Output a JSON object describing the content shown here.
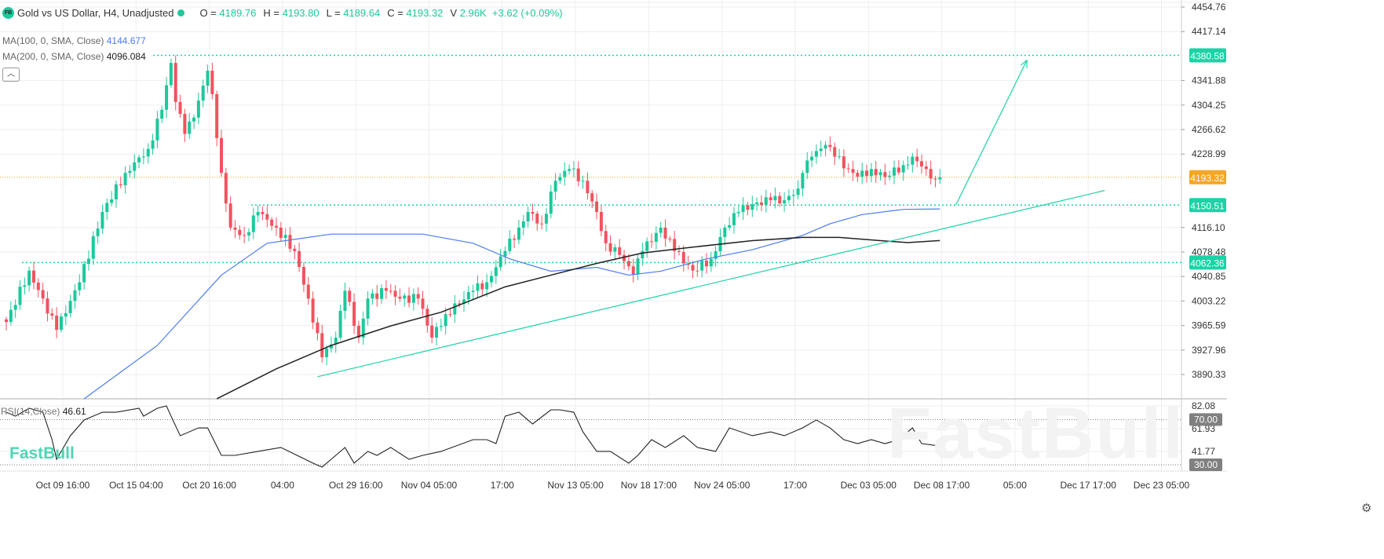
{
  "header": {
    "logo": "FB",
    "title": "Gold vs US Dollar, H4, Unadjusted",
    "o_label": "O =",
    "o": "4189.76",
    "h_label": "H =",
    "h": "4193.80",
    "l_label": "L =",
    "l": "4189.64",
    "c_label": "C =",
    "c": "4193.32",
    "v_label": "V",
    "v": "2.96K",
    "change": "+3.62 (+0.09%)"
  },
  "indicators": {
    "ma100_label": "MA(100, 0, SMA, Close)",
    "ma100_value": "4144.677",
    "ma200_label": "MA(200, 0, SMA, Close)",
    "ma200_value": "4096.084",
    "rsi_label": "RSI(14,Close)",
    "rsi_value": "46.61",
    "collapse_icon": "chevron-up-icon"
  },
  "branding": {
    "corner_logo": "FastBull",
    "watermark": "FastBull"
  },
  "colors": {
    "up": "#1bc99b",
    "down": "#f2525f",
    "ma100": "#4a7cf0",
    "ma200": "#222222",
    "lines": "#1ad3a6",
    "last_price": "#f5a623"
  },
  "chart_data": {
    "type": "candlestick",
    "price_axis": {
      "ticks": [
        "4454.76",
        "4417.14",
        "4341.88",
        "4304.25",
        "4266.62",
        "4228.99",
        "4116.10",
        "4078.48",
        "4040.85",
        "4003.22",
        "3965.59",
        "3927.96",
        "3890.33"
      ],
      "range": [
        3870,
        4460
      ]
    },
    "rsi_axis": {
      "ticks": [
        "82.08",
        "61.93",
        "41.77"
      ],
      "levels": [
        "70.00",
        "30.00"
      ]
    },
    "x_ticks": [
      "Oct 09 16:00",
      "Oct 15 04:00",
      "Oct 20 16:00",
      "04:00",
      "Oct 29 16:00",
      "Nov 04 05:00",
      "17:00",
      "Nov 13 05:00",
      "Nov 18 17:00",
      "Nov 24 05:00",
      "17:00",
      "Dec 03 05:00",
      "Dec 08 17:00",
      "05:00",
      "Dec 17 17:00",
      "Dec 23 05:00"
    ],
    "last_price": "4193.32",
    "horizontal_levels": [
      "4380.58",
      "4150.51",
      "4062.36"
    ],
    "close_keyframes": [
      [
        0,
        3971
      ],
      [
        5,
        4050
      ],
      [
        11,
        3959
      ],
      [
        16,
        4032
      ],
      [
        21,
        4140
      ],
      [
        26,
        4200
      ],
      [
        31,
        4237
      ],
      [
        34,
        4297
      ],
      [
        36,
        4369
      ],
      [
        37,
        4309
      ],
      [
        39,
        4260
      ],
      [
        41,
        4285
      ],
      [
        44,
        4357
      ],
      [
        45,
        4321
      ],
      [
        47,
        4200
      ],
      [
        49,
        4116
      ],
      [
        52,
        4104
      ],
      [
        55,
        4140
      ],
      [
        59,
        4116
      ],
      [
        63,
        4080
      ],
      [
        66,
        4007
      ],
      [
        69,
        3917
      ],
      [
        72,
        3947
      ],
      [
        74,
        4019
      ],
      [
        77,
        3947
      ],
      [
        79,
        4007
      ],
      [
        83,
        4019
      ],
      [
        86,
        4007
      ],
      [
        90,
        4007
      ],
      [
        93,
        3947
      ],
      [
        96,
        3983
      ],
      [
        102,
        4019
      ],
      [
        105,
        4032
      ],
      [
        109,
        4080
      ],
      [
        112,
        4116
      ],
      [
        114,
        4140
      ],
      [
        117,
        4122
      ],
      [
        120,
        4188
      ],
      [
        123,
        4206
      ],
      [
        126,
        4188
      ],
      [
        129,
        4140
      ],
      [
        131,
        4092
      ],
      [
        134,
        4074
      ],
      [
        137,
        4044
      ],
      [
        139,
        4080
      ],
      [
        143,
        4116
      ],
      [
        146,
        4080
      ],
      [
        150,
        4050
      ],
      [
        154,
        4068
      ],
      [
        157,
        4116
      ],
      [
        160,
        4140
      ],
      [
        163,
        4152
      ],
      [
        167,
        4158
      ],
      [
        170,
        4158
      ],
      [
        173,
        4176
      ],
      [
        174,
        4200
      ],
      [
        176,
        4225
      ],
      [
        179,
        4243
      ],
      [
        181,
        4225
      ],
      [
        184,
        4206
      ],
      [
        186,
        4194
      ],
      [
        189,
        4206
      ],
      [
        192,
        4194
      ],
      [
        196,
        4212
      ],
      [
        198,
        4225
      ],
      [
        201,
        4206
      ],
      [
        203,
        4190
      ],
      [
        204,
        4193.32
      ]
    ],
    "ma100": [
      [
        17,
        3853
      ],
      [
        33,
        3935
      ],
      [
        47,
        4043
      ],
      [
        57,
        4092
      ],
      [
        71,
        4106
      ],
      [
        91,
        4106
      ],
      [
        102,
        4092
      ],
      [
        110,
        4068
      ],
      [
        119,
        4049
      ],
      [
        129,
        4055
      ],
      [
        136,
        4043
      ],
      [
        143,
        4049
      ],
      [
        153,
        4068
      ],
      [
        163,
        4082
      ],
      [
        174,
        4104
      ],
      [
        180,
        4122
      ],
      [
        187,
        4136
      ],
      [
        196,
        4144
      ],
      [
        204,
        4144.677
      ]
    ],
    "ma200": [
      [
        46,
        3853
      ],
      [
        59,
        3899
      ],
      [
        71,
        3935
      ],
      [
        84,
        3965
      ],
      [
        95,
        3986
      ],
      [
        109,
        4025
      ],
      [
        119,
        4043
      ],
      [
        129,
        4061
      ],
      [
        139,
        4077
      ],
      [
        150,
        4086
      ],
      [
        163,
        4096
      ],
      [
        174,
        4101
      ],
      [
        182,
        4101
      ],
      [
        191,
        4096
      ],
      [
        197,
        4093
      ],
      [
        204,
        4096.084
      ]
    ],
    "trendline": [
      [
        68,
        3887
      ],
      [
        240,
        4173
      ]
    ],
    "arrow": [
      [
        207.5,
        4151
      ],
      [
        223,
        4373
      ]
    ],
    "rsi": [
      [
        0,
        76.5
      ],
      [
        2,
        73.0
      ],
      [
        5,
        80.0
      ],
      [
        8,
        76.5
      ],
      [
        10,
        52.2
      ],
      [
        11,
        34.8
      ],
      [
        14,
        55.7
      ],
      [
        17,
        69.6
      ],
      [
        21,
        76.5
      ],
      [
        24,
        76.5
      ],
      [
        29,
        80.0
      ],
      [
        30,
        73.0
      ],
      [
        33,
        80.0
      ],
      [
        35,
        82.1
      ],
      [
        36,
        73.0
      ],
      [
        38,
        55.7
      ],
      [
        42,
        62.6
      ],
      [
        44,
        62.6
      ],
      [
        47,
        38.3
      ],
      [
        50,
        38.3
      ],
      [
        55,
        41.8
      ],
      [
        60,
        45.3
      ],
      [
        67,
        31.4
      ],
      [
        69,
        27.9
      ],
      [
        72,
        38.3
      ],
      [
        74,
        45.3
      ],
      [
        76,
        31.4
      ],
      [
        79,
        41.8
      ],
      [
        81,
        38.3
      ],
      [
        84,
        45.3
      ],
      [
        88,
        34.8
      ],
      [
        91,
        38.3
      ],
      [
        95,
        41.8
      ],
      [
        102,
        52.2
      ],
      [
        105,
        52.2
      ],
      [
        107,
        48.7
      ],
      [
        109,
        73.0
      ],
      [
        112,
        76.5
      ],
      [
        115,
        66.1
      ],
      [
        119,
        78.6
      ],
      [
        121,
        78.6
      ],
      [
        124,
        76.5
      ],
      [
        126,
        59.1
      ],
      [
        129,
        41.8
      ],
      [
        132,
        41.8
      ],
      [
        136,
        31.4
      ],
      [
        138,
        38.3
      ],
      [
        141,
        52.2
      ],
      [
        144,
        45.3
      ],
      [
        148,
        55.7
      ],
      [
        151,
        45.3
      ],
      [
        155,
        41.8
      ],
      [
        158,
        62.6
      ],
      [
        163,
        55.7
      ],
      [
        167,
        59.1
      ],
      [
        170,
        55.7
      ],
      [
        174,
        62.6
      ],
      [
        177,
        69.6
      ],
      [
        180,
        62.6
      ],
      [
        183,
        52.2
      ],
      [
        186,
        48.7
      ],
      [
        189,
        52.2
      ],
      [
        192,
        48.7
      ],
      [
        195,
        52.2
      ],
      [
        198,
        62.6
      ],
      [
        200,
        48.7
      ],
      [
        204,
        46.61
      ]
    ]
  }
}
